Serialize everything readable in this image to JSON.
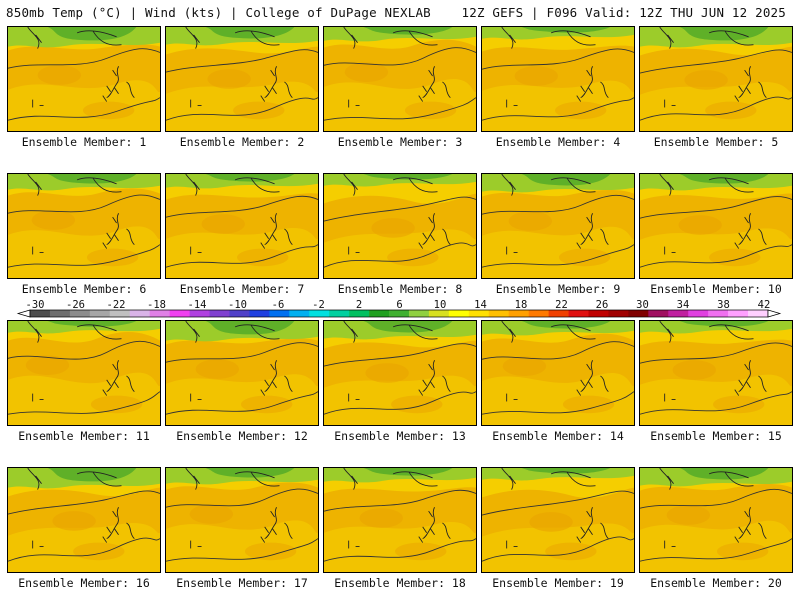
{
  "header": {
    "left": "850mb Temp (°C) | Wind (kts) | College of DuPage NEXLAB",
    "right": "12Z GEFS | F096 Valid: 12Z THU JUN 12 2025"
  },
  "members": [
    "Ensemble Member: 1",
    "Ensemble Member: 2",
    "Ensemble Member: 3",
    "Ensemble Member: 4",
    "Ensemble Member: 5",
    "Ensemble Member: 6",
    "Ensemble Member: 7",
    "Ensemble Member: 8",
    "Ensemble Member: 9",
    "Ensemble Member: 10",
    "Ensemble Member: 11",
    "Ensemble Member: 12",
    "Ensemble Member: 13",
    "Ensemble Member: 14",
    "Ensemble Member: 15",
    "Ensemble Member: 16",
    "Ensemble Member: 17",
    "Ensemble Member: 18",
    "Ensemble Member: 19",
    "Ensemble Member: 20"
  ],
  "colorbar": {
    "labels": [
      "-30",
      "-26",
      "-22",
      "-18",
      "-14",
      "-10",
      "-6",
      "-2",
      "2",
      "6",
      "10",
      "14",
      "18",
      "22",
      "26",
      "30",
      "34",
      "38",
      "42"
    ],
    "colors": [
      "#4d4d4d",
      "#6e6e6e",
      "#8c8c8c",
      "#a6a6a6",
      "#c0c0c0",
      "#d9b3e8",
      "#e080e6",
      "#f040f0",
      "#b040e0",
      "#8040d0",
      "#5040c8",
      "#2040e0",
      "#0070f0",
      "#00b0f0",
      "#00e0e0",
      "#00d0a0",
      "#00c060",
      "#20a020",
      "#40b030",
      "#90d040",
      "#d8e020",
      "#ffff00",
      "#ffe000",
      "#ffc000",
      "#ffa000",
      "#ff7a00",
      "#f04000",
      "#e01010",
      "#c00000",
      "#a00000",
      "#800000",
      "#a01060",
      "#c020a0",
      "#e040e0",
      "#f070f0",
      "#ffa0ff",
      "#ffd0ff"
    ]
  }
}
